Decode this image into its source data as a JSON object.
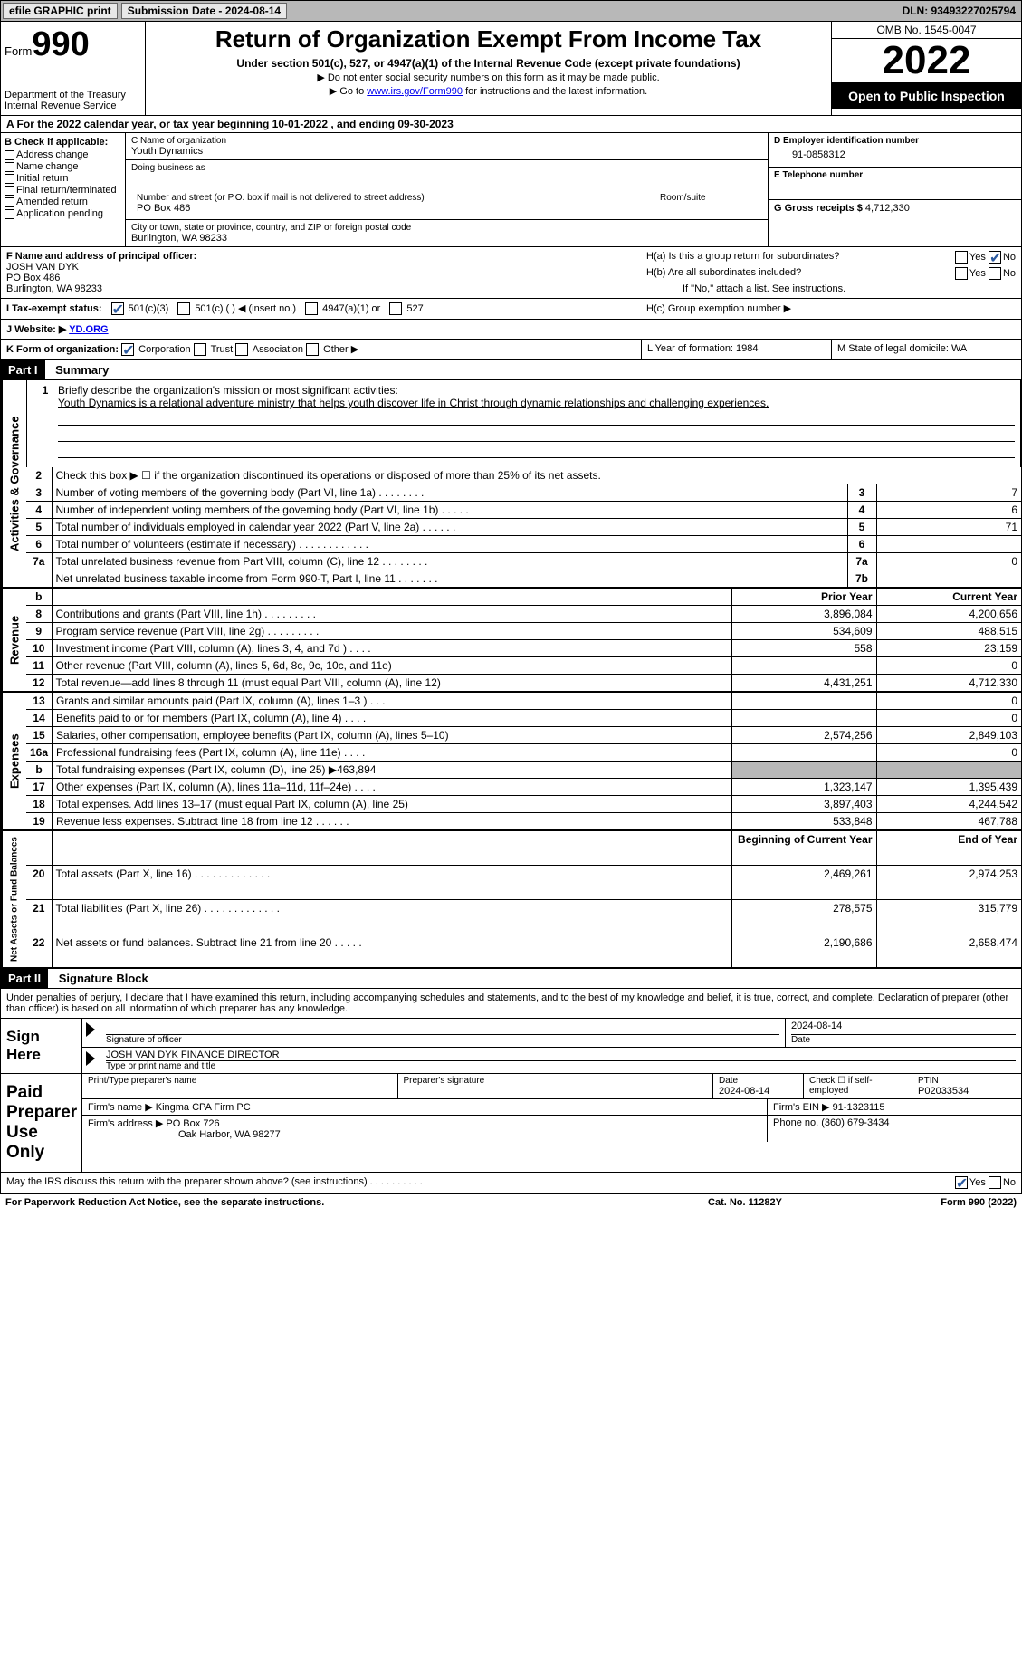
{
  "top_bar": {
    "efile": "efile GRAPHIC print",
    "submission": "Submission Date - 2024-08-14",
    "dln": "DLN: 93493227025794"
  },
  "header": {
    "form_label": "Form",
    "form_number": "990",
    "dept": "Department of the Treasury",
    "irs": "Internal Revenue Service",
    "title": "Return of Organization Exempt From Income Tax",
    "subtitle": "Under section 501(c), 527, or 4947(a)(1) of the Internal Revenue Code (except private foundations)",
    "note1": "▶ Do not enter social security numbers on this form as it may be made public.",
    "note2_pre": "▶ Go to ",
    "note2_link": "www.irs.gov/Form990",
    "note2_post": " for instructions and the latest information.",
    "omb": "OMB No. 1545-0047",
    "year": "2022",
    "open_public": "Open to Public Inspection"
  },
  "line_a": "A For the 2022 calendar year, or tax year beginning 10-01-2022    , and ending 09-30-2023",
  "box_b": {
    "header": "B Check if applicable:",
    "items": [
      "Address change",
      "Name change",
      "Initial return",
      "Final return/terminated",
      "Amended return",
      "Application pending"
    ]
  },
  "box_c": {
    "name_label": "C Name of organization",
    "name": "Youth Dynamics",
    "dba_label": "Doing business as",
    "street_label": "Number and street (or P.O. box if mail is not delivered to street address)",
    "room_label": "Room/suite",
    "street": "PO Box 486",
    "city_label": "City or town, state or province, country, and ZIP or foreign postal code",
    "city": "Burlington, WA  98233"
  },
  "box_d": {
    "ein_label": "D Employer identification number",
    "ein": "91-0858312",
    "phone_label": "E Telephone number",
    "gross_label": "G Gross receipts $",
    "gross": "4,712,330"
  },
  "box_f": {
    "label": "F Name and address of principal officer:",
    "name": "JOSH VAN DYK",
    "street": "PO Box 486",
    "city": "Burlington, WA  98233"
  },
  "box_h": {
    "ha": "H(a)  Is this a group return for subordinates?",
    "hb": "H(b)  Are all subordinates included?",
    "hb_note": "If \"No,\" attach a list. See instructions.",
    "hc": "H(c)  Group exemption number ▶",
    "yes": "Yes",
    "no": "No"
  },
  "tax_status": {
    "label": "I  Tax-exempt status:",
    "opt1": "501(c)(3)",
    "opt2": "501(c) (  ) ◀ (insert no.)",
    "opt3": "4947(a)(1) or",
    "opt4": "527"
  },
  "website": {
    "label": "J  Website: ▶",
    "value": "YD.ORG"
  },
  "line_k": {
    "label": "K Form of organization:",
    "opts": [
      "Corporation",
      "Trust",
      "Association",
      "Other ▶"
    ],
    "l": "L Year of formation: 1984",
    "m": "M State of legal domicile: WA"
  },
  "part1": {
    "label": "Part I",
    "title": "Summary"
  },
  "mission": {
    "prompt_num": "1",
    "prompt": "Briefly describe the organization's mission or most significant activities:",
    "text": "Youth Dynamics is a relational adventure ministry that helps youth discover life in Christ through dynamic relationships and challenging experiences."
  },
  "governance_rows": [
    {
      "num": "2",
      "desc": "Check this box ▶ ☐  if the organization discontinued its operations or disposed of more than 25% of its net assets."
    },
    {
      "num": "3",
      "desc": "Number of voting members of the governing body (Part VI, line 1a)   .    .    .    .    .    .    .    .",
      "box": "3",
      "val": "7"
    },
    {
      "num": "4",
      "desc": "Number of independent voting members of the governing body (Part VI, line 1b)   .    .    .    .    .",
      "box": "4",
      "val": "6"
    },
    {
      "num": "5",
      "desc": "Total number of individuals employed in calendar year 2022 (Part V, line 2a)   .    .    .    .    .    .",
      "box": "5",
      "val": "71"
    },
    {
      "num": "6",
      "desc": "Total number of volunteers (estimate if necessary)    .    .    .    .    .    .    .    .    .    .    .    .",
      "box": "6",
      "val": ""
    },
    {
      "num": "7a",
      "desc": "Total unrelated business revenue from Part VIII, column (C), line 12   .    .    .    .    .    .    .    .",
      "box": "7a",
      "val": "0"
    },
    {
      "num": "",
      "desc": "Net unrelated business taxable income from Form 990-T, Part I, line 11   .    .    .    .    .    .    .",
      "box": "7b",
      "val": ""
    }
  ],
  "prior_current": {
    "b": "b",
    "prior": "Prior Year",
    "current": "Current Year"
  },
  "revenue_rows": [
    {
      "num": "8",
      "desc": "Contributions and grants (Part VIII, line 1h)   .    .    .    .    .    .    .    .    .",
      "prior": "3,896,084",
      "current": "4,200,656"
    },
    {
      "num": "9",
      "desc": "Program service revenue (Part VIII, line 2g)   .    .    .    .    .    .    .    .    .",
      "prior": "534,609",
      "current": "488,515"
    },
    {
      "num": "10",
      "desc": "Investment income (Part VIII, column (A), lines 3, 4, and 7d )   .    .    .    .",
      "prior": "558",
      "current": "23,159"
    },
    {
      "num": "11",
      "desc": "Other revenue (Part VIII, column (A), lines 5, 6d, 8c, 9c, 10c, and 11e)",
      "prior": "",
      "current": "0"
    },
    {
      "num": "12",
      "desc": "Total revenue—add lines 8 through 11 (must equal Part VIII, column (A), line 12)",
      "prior": "4,431,251",
      "current": "4,712,330"
    }
  ],
  "expense_rows": [
    {
      "num": "13",
      "desc": "Grants and similar amounts paid (Part IX, column (A), lines 1–3 )   .    .    .",
      "prior": "",
      "current": "0"
    },
    {
      "num": "14",
      "desc": "Benefits paid to or for members (Part IX, column (A), line 4)   .    .    .    .",
      "prior": "",
      "current": "0"
    },
    {
      "num": "15",
      "desc": "Salaries, other compensation, employee benefits (Part IX, column (A), lines 5–10)",
      "prior": "2,574,256",
      "current": "2,849,103"
    },
    {
      "num": "16a",
      "desc": "Professional fundraising fees (Part IX, column (A), line 11e)   .    .    .    .",
      "prior": "",
      "current": "0"
    },
    {
      "num": "b",
      "desc": "Total fundraising expenses (Part IX, column (D), line 25) ▶463,894",
      "prior": "SHADED",
      "current": "SHADED"
    },
    {
      "num": "17",
      "desc": "Other expenses (Part IX, column (A), lines 11a–11d, 11f–24e)   .    .    .    .",
      "prior": "1,323,147",
      "current": "1,395,439"
    },
    {
      "num": "18",
      "desc": "Total expenses. Add lines 13–17 (must equal Part IX, column (A), line 25)",
      "prior": "3,897,403",
      "current": "4,244,542"
    },
    {
      "num": "19",
      "desc": "Revenue less expenses. Subtract line 18 from line 12   .    .    .    .    .    .",
      "prior": "533,848",
      "current": "467,788"
    }
  ],
  "netassets_header": {
    "begin": "Beginning of Current Year",
    "end": "End of Year"
  },
  "netassets_rows": [
    {
      "num": "20",
      "desc": "Total assets (Part X, line 16)   .    .    .    .    .    .    .    .    .    .    .    .    .",
      "prior": "2,469,261",
      "current": "2,974,253"
    },
    {
      "num": "21",
      "desc": "Total liabilities (Part X, line 26)   .    .    .    .    .    .    .    .    .    .    .    .    .",
      "prior": "278,575",
      "current": "315,779"
    },
    {
      "num": "22",
      "desc": "Net assets or fund balances. Subtract line 21 from line 20   .    .    .    .    .",
      "prior": "2,190,686",
      "current": "2,658,474"
    }
  ],
  "vert_labels": {
    "gov": "Activities & Governance",
    "rev": "Revenue",
    "exp": "Expenses",
    "net": "Net Assets or Fund Balances"
  },
  "part2": {
    "label": "Part II",
    "title": "Signature Block"
  },
  "penalty": "Under penalties of perjury, I declare that I have examined this return, including accompanying schedules and statements, and to the best of my knowledge and belief, it is true, correct, and complete. Declaration of preparer (other than officer) is based on all information of which preparer has any knowledge.",
  "sign_here": {
    "label": "Sign Here",
    "sig_officer": "Signature of officer",
    "sig_date": "2024-08-14",
    "date_label": "Date",
    "name_title": "JOSH VAN DYK  FINANCE DIRECTOR",
    "name_title_label": "Type or print name and title"
  },
  "paid_preparer": {
    "label": "Paid Preparer Use Only",
    "print_name_label": "Print/Type preparer's name",
    "sig_label": "Preparer's signature",
    "date_label": "Date",
    "date": "2024-08-14",
    "check_self": "Check ☐ if self-employed",
    "ptin_label": "PTIN",
    "ptin": "P02033534",
    "firm_name_label": "Firm's name    ▶",
    "firm_name": "Kingma CPA Firm PC",
    "firm_ein_label": "Firm's EIN ▶",
    "firm_ein": "91-1323115",
    "firm_addr_label": "Firm's address ▶",
    "firm_addr1": "PO Box 726",
    "firm_addr2": "Oak Harbor, WA  98277",
    "phone_label": "Phone no.",
    "phone": "(360) 679-3434"
  },
  "discuss": {
    "q": "May the IRS discuss this return with the preparer shown above? (see instructions)   .    .    .    .    .    .    .    .    .    .",
    "yes": "Yes",
    "no": "No"
  },
  "footer": {
    "left": "For Paperwork Reduction Act Notice, see the separate instructions.",
    "mid": "Cat. No. 11282Y",
    "right": "Form 990 (2022)"
  }
}
